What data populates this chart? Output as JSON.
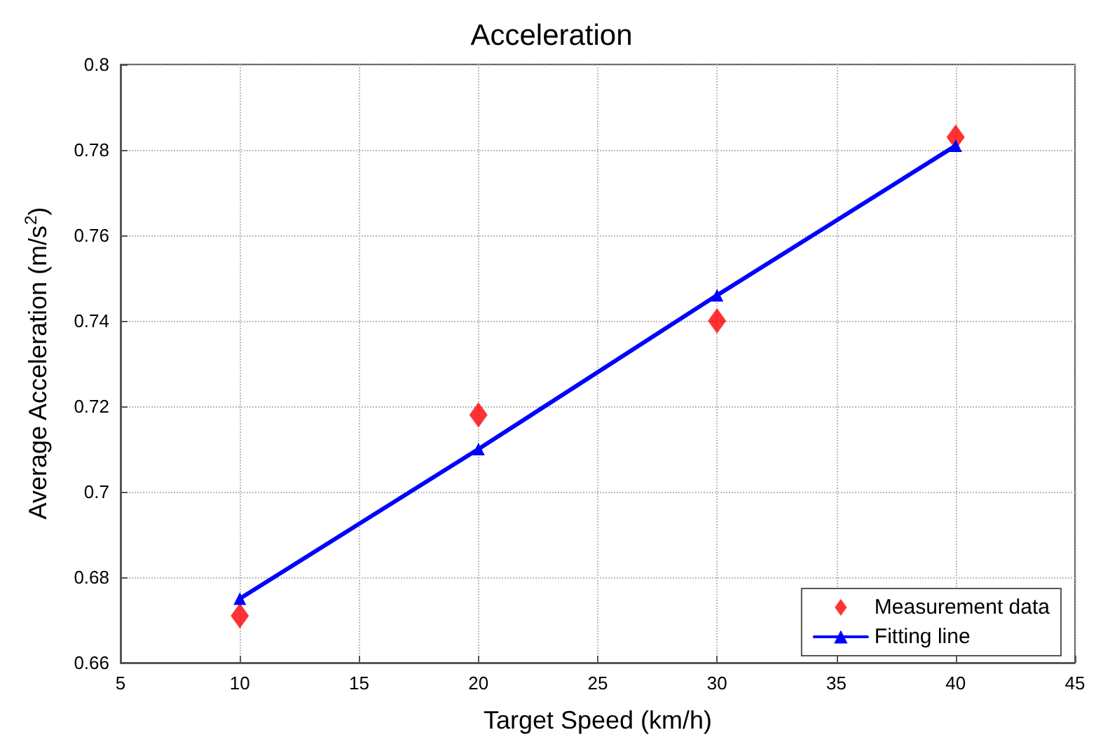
{
  "chart_data": {
    "type": "scatter",
    "title": "Acceleration",
    "xlabel": "Target Speed (km/h)",
    "ylabel": "Average Acceleration (m/s$^{2}$)",
    "xlim": [
      5,
      45
    ],
    "xticks": [
      5,
      10,
      15,
      20,
      25,
      30,
      35,
      40,
      45
    ],
    "ylim": [
      0.66,
      0.8
    ],
    "yticks": [
      0.66,
      0.68,
      0.7,
      0.72,
      0.74,
      0.76,
      0.78,
      0.8
    ],
    "grid": true,
    "legend": "bottom right",
    "series": [
      {
        "name": "Measurement data",
        "marker": "diamond",
        "color": "#ff0000",
        "x": [
          10,
          20,
          30,
          40
        ],
        "values": [
          0.671,
          0.718,
          0.74,
          0.783
        ]
      },
      {
        "name": "Fitting line",
        "type": "line",
        "marker": "triangle",
        "line_style": "solid",
        "color": "#0000ff",
        "x": [
          10,
          20,
          30,
          40
        ],
        "values": [
          0.675,
          0.71,
          0.746,
          0.781
        ]
      }
    ]
  }
}
